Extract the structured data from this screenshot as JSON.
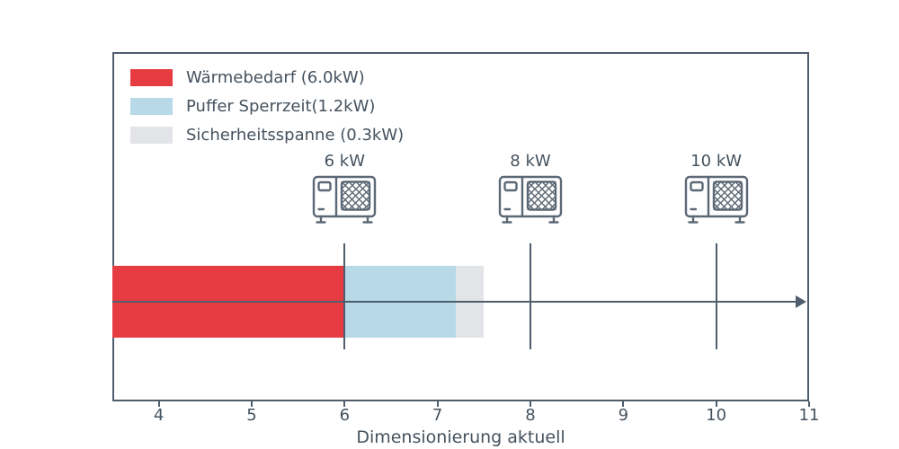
{
  "chart_data": {
    "type": "bar",
    "orientation": "horizontal",
    "xlabel": "Dimensionierung aktuell",
    "xlim": [
      3.5,
      11
    ],
    "ticks": [
      4,
      5,
      6,
      7,
      8,
      9,
      10,
      11
    ],
    "grid": false,
    "legend_position": "upper-left-inside",
    "segments": [
      {
        "name": "Wärmebedarf",
        "value_kw": 6.0,
        "from": 3.5,
        "to": 6.0,
        "color": "#e63b40"
      },
      {
        "name": "Puffer Sperrzeit",
        "value_kw": 1.2,
        "from": 6.0,
        "to": 7.2,
        "color": "#b7d9e8"
      },
      {
        "name": "Sicherheitsspanne",
        "value_kw": 0.3,
        "from": 7.2,
        "to": 7.5,
        "color": "#e2e4e8"
      }
    ],
    "legend": [
      {
        "label": "Wärmebedarf (6.0kW)",
        "color": "#e63b40"
      },
      {
        "label": "Puffer Sperrzeit(1.2kW)",
        "color": "#b7d9e8"
      },
      {
        "label": "Sicherheitsspanne (0.3kW)",
        "color": "#e2e4e8"
      }
    ],
    "pumps": [
      {
        "label": "6 kW",
        "x": 6
      },
      {
        "label": "8 kW",
        "x": 8
      },
      {
        "label": "10 kW",
        "x": 10
      }
    ],
    "colors": {
      "axis": "#4f5d6d",
      "text": "#45525e",
      "icon": "#5b6875"
    }
  }
}
